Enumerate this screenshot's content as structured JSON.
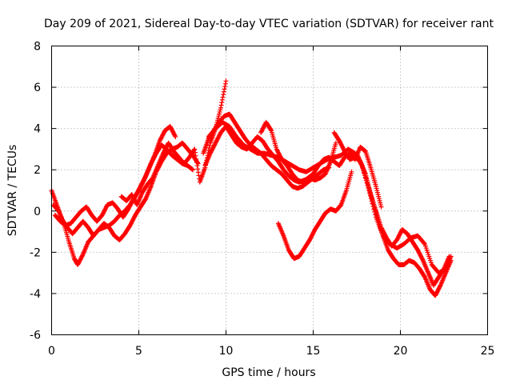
{
  "chart_data": {
    "type": "scatter",
    "title": "Day 209 of 2021, Sidereal Day-to-day VTEC variation (SDTVAR) for receiver rant",
    "xlabel": "GPS time / hours",
    "ylabel": "SDTVAR / TECUs",
    "xlim": [
      0,
      25
    ],
    "ylim": [
      -6,
      8
    ],
    "x_ticks": [
      "0",
      "5",
      "10",
      "15",
      "20",
      "25"
    ],
    "y_ticks": [
      "-6",
      "-4",
      "-2",
      "0",
      "2",
      "4",
      "6",
      "8"
    ],
    "grid": true,
    "marker": "+",
    "color": "#ff0000",
    "series": [
      {
        "name": "trace-1",
        "x": [
          0,
          0.3,
          0.6,
          0.9,
          1.2,
          1.5,
          1.8,
          2.1,
          2.4,
          2.7,
          3.0,
          3.3,
          3.6,
          3.9,
          4.2,
          4.5,
          4.8,
          5.1,
          5.4,
          5.7,
          6.0,
          6.3,
          6.6,
          6.9,
          7.2,
          7.5,
          7.8,
          8.1,
          8.4
        ],
        "y": [
          1.0,
          0.3,
          -0.4,
          -0.8,
          -1.1,
          -0.8,
          -0.5,
          -0.8,
          -1.2,
          -0.9,
          -0.6,
          -0.8,
          -1.2,
          -1.4,
          -1.1,
          -0.7,
          -0.2,
          0.2,
          0.6,
          1.2,
          1.9,
          2.4,
          2.8,
          3.0,
          3.1,
          3.3,
          3.0,
          2.7,
          2.3
        ]
      },
      {
        "name": "trace-2",
        "x": [
          0.1,
          0.4,
          0.7,
          1.0,
          1.3,
          1.5,
          1.8,
          2.1,
          2.4,
          2.7,
          3.0,
          3.3,
          3.6,
          3.9,
          4.2,
          4.5,
          4.8,
          5.1,
          5.4,
          5.7,
          6.0,
          6.3,
          6.6,
          6.9,
          7.2,
          7.5,
          7.8,
          8.1
        ],
        "y": [
          0.3,
          0.0,
          -0.6,
          -1.5,
          -2.3,
          -2.6,
          -2.1,
          -1.5,
          -1.2,
          -0.9,
          -0.8,
          -0.7,
          -0.5,
          -0.2,
          0.0,
          0.3,
          0.7,
          1.2,
          1.7,
          2.3,
          2.8,
          3.2,
          3.0,
          2.7,
          2.5,
          2.3,
          2.2,
          2.0
        ]
      },
      {
        "name": "trace-3",
        "x": [
          0.2,
          0.5,
          0.8,
          1.1,
          1.4,
          1.7,
          2.0,
          2.3,
          2.6,
          2.9,
          3.2,
          3.5,
          3.8,
          4.1,
          4.4,
          4.7,
          5.0,
          5.3,
          5.6,
          5.9,
          6.2,
          6.5,
          6.8,
          7.1
        ],
        "y": [
          -0.2,
          -0.5,
          -0.7,
          -0.6,
          -0.3,
          0.0,
          0.2,
          -0.2,
          -0.5,
          -0.2,
          0.3,
          0.4,
          0.1,
          -0.3,
          0.1,
          0.6,
          1.0,
          1.5,
          2.1,
          2.7,
          3.4,
          3.9,
          4.1,
          3.6
        ]
      },
      {
        "name": "trace-4",
        "x": [
          8.7,
          9.0,
          9.3,
          9.6,
          9.9,
          10.2,
          10.5,
          10.8,
          11.1,
          11.4,
          11.7,
          12.0,
          12.3,
          12.6,
          12.9,
          13.2,
          13.5,
          13.8,
          14.1,
          14.4,
          14.7,
          15.0,
          15.3,
          15.6,
          15.9
        ],
        "y": [
          2.8,
          3.5,
          3.9,
          4.3,
          4.6,
          4.7,
          4.3,
          3.9,
          3.5,
          3.2,
          3.0,
          2.8,
          2.5,
          2.2,
          2.0,
          1.8,
          1.5,
          1.2,
          1.1,
          1.2,
          1.4,
          1.6,
          1.8,
          2.0,
          2.1
        ]
      },
      {
        "name": "trace-5",
        "x": [
          8.8,
          9.1,
          9.4,
          9.7,
          10.0,
          10.3,
          10.6,
          10.9,
          11.2,
          11.5,
          11.8,
          12.1,
          12.4,
          12.7,
          13.0,
          13.3,
          13.6,
          13.9,
          14.2,
          14.5,
          14.8,
          15.1,
          15.4,
          15.7,
          16.0,
          16.3
        ],
        "y": [
          2.2,
          2.8,
          3.3,
          3.8,
          4.1,
          3.7,
          3.3,
          3.1,
          3.0,
          3.3,
          3.6,
          3.4,
          3.0,
          2.7,
          2.4,
          2.0,
          1.7,
          1.5,
          1.4,
          1.5,
          1.6,
          1.5,
          1.6,
          1.8,
          2.4,
          3.3
        ]
      },
      {
        "name": "trace-6",
        "x": [
          9.0,
          9.4,
          9.8,
          10.2,
          10.6,
          11.0,
          11.4,
          11.8,
          12.2,
          12.6,
          13.0,
          13.4,
          13.8,
          14.2,
          14.6,
          15.0,
          15.4,
          15.8,
          16.2,
          16.6,
          17.0,
          17.4,
          17.8,
          18.2,
          18.6,
          19.0,
          19.4,
          19.8,
          20.2,
          20.6,
          21.0,
          21.4,
          21.8,
          22.2,
          22.6,
          22.9
        ],
        "y": [
          3.6,
          4.0,
          4.3,
          4.1,
          3.6,
          3.2,
          3.0,
          2.8,
          2.8,
          2.7,
          2.6,
          2.4,
          2.2,
          2.0,
          1.9,
          2.1,
          2.3,
          2.5,
          2.6,
          2.7,
          3.0,
          2.8,
          2.2,
          1.0,
          -0.3,
          -1.2,
          -1.6,
          -1.8,
          -1.6,
          -1.3,
          -1.2,
          -1.6,
          -2.6,
          -3.0,
          -2.8,
          -2.2
        ]
      },
      {
        "name": "trace-7",
        "x": [
          16.2,
          16.5,
          16.8,
          17.1,
          17.4,
          17.7,
          18.0,
          18.3,
          18.6,
          18.9,
          19.2,
          19.5,
          19.8,
          20.1,
          20.4,
          20.7,
          21.0,
          21.3,
          21.6,
          21.9,
          22.2,
          22.5,
          22.8
        ],
        "y": [
          3.8,
          3.4,
          2.9,
          2.5,
          2.6,
          2.4,
          1.8,
          0.8,
          0.0,
          -0.8,
          -1.3,
          -1.7,
          -1.4,
          -0.9,
          -1.1,
          -1.5,
          -1.9,
          -2.4,
          -3.0,
          -3.6,
          -3.2,
          -2.8,
          -2.2
        ]
      },
      {
        "name": "trace-8",
        "x": [
          13.0,
          13.3,
          13.6,
          13.9,
          14.2,
          14.5,
          14.8,
          15.1,
          15.4,
          15.7,
          16.0,
          16.3,
          16.6,
          16.9,
          17.2
        ],
        "y": [
          -0.6,
          -1.2,
          -1.9,
          -2.3,
          -2.2,
          -1.8,
          -1.4,
          -0.9,
          -0.5,
          -0.1,
          0.1,
          0.0,
          0.3,
          1.0,
          1.9
        ]
      },
      {
        "name": "trace-9",
        "x": [
          17.5,
          17.8,
          18.1,
          18.4,
          18.7,
          19.0,
          19.3,
          19.6,
          19.9,
          20.2,
          20.5,
          20.8,
          21.1,
          21.4,
          21.7,
          22.0,
          22.3,
          22.6,
          22.9
        ],
        "y": [
          2.8,
          2.2,
          1.4,
          0.5,
          -0.4,
          -1.2,
          -1.9,
          -2.3,
          -2.6,
          -2.6,
          -2.4,
          -2.5,
          -2.8,
          -3.2,
          -3.8,
          -4.1,
          -3.6,
          -3.0,
          -2.4
        ]
      },
      {
        "name": "trace-10",
        "x": [
          4.0,
          4.3,
          4.6,
          4.9,
          5.2,
          5.5,
          5.8,
          6.1,
          6.4,
          6.7,
          7.0,
          7.3,
          7.6,
          7.9,
          8.2,
          8.5,
          8.8,
          9.1,
          9.4,
          9.7,
          10.0
        ],
        "y": [
          0.7,
          0.5,
          0.8,
          0.3,
          0.9,
          1.3,
          1.6,
          2.2,
          2.8,
          3.3,
          2.9,
          2.6,
          2.3,
          2.6,
          3.0,
          1.4,
          2.1,
          3.3,
          4.0,
          5.0,
          6.3
        ]
      },
      {
        "name": "trace-11",
        "x": [
          12.0,
          12.3,
          12.6,
          12.9,
          13.2,
          13.5,
          13.8,
          14.1,
          14.4,
          14.7,
          15.0,
          15.3,
          15.6,
          15.9,
          16.2,
          16.5,
          16.8,
          17.1,
          17.4,
          17.7,
          18.0,
          18.3,
          18.6,
          18.9
        ],
        "y": [
          3.8,
          4.3,
          3.9,
          3.0,
          2.5,
          2.2,
          1.8,
          1.5,
          1.4,
          1.6,
          1.8,
          2.2,
          2.5,
          2.6,
          2.4,
          2.2,
          2.6,
          2.8,
          2.5,
          3.1,
          2.9,
          2.1,
          1.2,
          0.2
        ]
      }
    ]
  }
}
